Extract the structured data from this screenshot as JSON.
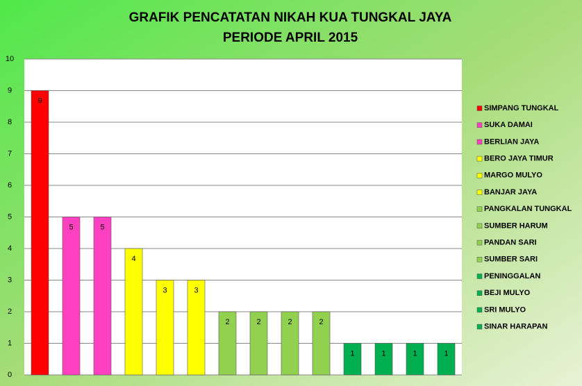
{
  "chart_data": {
    "type": "bar",
    "title": "GRAFIK PENCATATAN NIKAH KUA TUNGKAL JAYA",
    "subtitle": "PERIODE APRIL 2015",
    "categories": [
      "SIMPANG TUNGKAL",
      "SUKA DAMAI",
      "BERLIAN JAYA",
      "BERO JAYA TIMUR",
      "MARGO MULYO",
      "BANJAR JAYA",
      "PANGKALAN TUNGKAL",
      "SUMBER HARUM",
      "PANDAN SARI",
      "SUMBER SARI",
      "PENINGGALAN",
      "BEJI MULYO",
      "SRI MULYO",
      "SINAR HARAPAN"
    ],
    "values": [
      9,
      5,
      5,
      4,
      3,
      3,
      2,
      2,
      2,
      2,
      1,
      1,
      1,
      1
    ],
    "colors": [
      "#ff0000",
      "#ff40c0",
      "#ff40c0",
      "#ffff00",
      "#ffff00",
      "#ffff00",
      "#92d050",
      "#92d050",
      "#92d050",
      "#92d050",
      "#00b050",
      "#00b050",
      "#00b050",
      "#00b050"
    ],
    "ylim": [
      0,
      10
    ],
    "yticks": [
      0,
      1,
      2,
      3,
      4,
      5,
      6,
      7,
      8,
      9,
      10
    ],
    "grid": true
  }
}
